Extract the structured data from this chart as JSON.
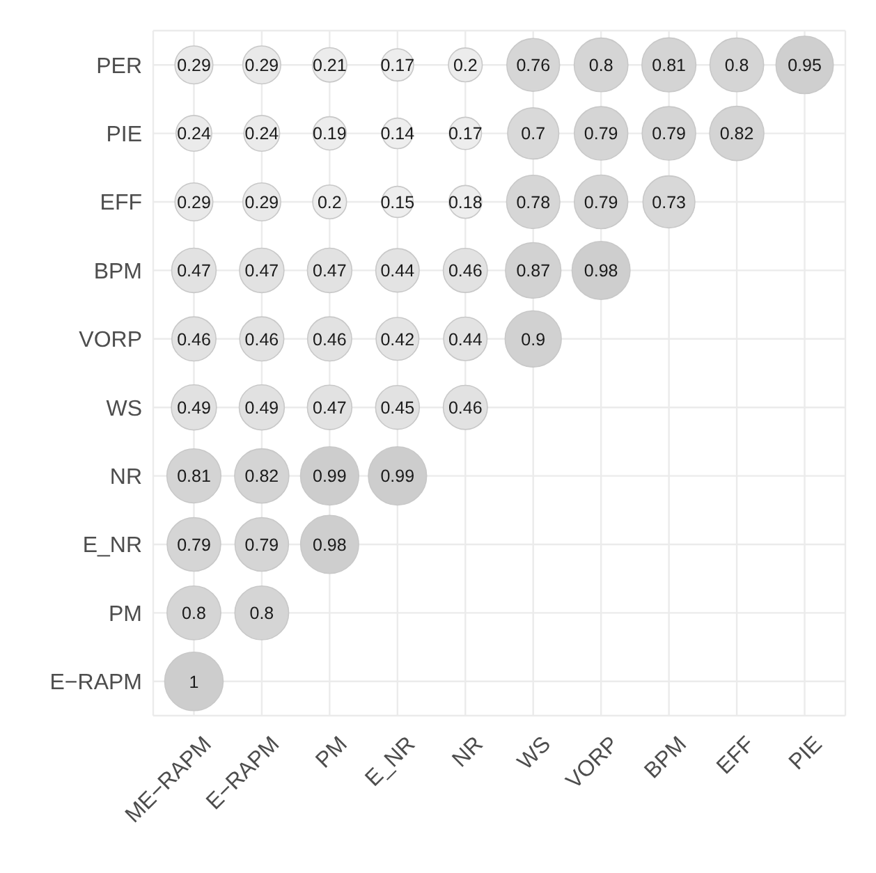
{
  "chart_data": {
    "type": "heatmap",
    "categories": [
      "ME−RAPM",
      "E−RAPM",
      "PM",
      "E_NR",
      "NR",
      "WS",
      "VORP",
      "BPM",
      "EFF",
      "PIE"
    ],
    "y_categories": [
      "PER",
      "PIE",
      "EFF",
      "BPM",
      "VORP",
      "WS",
      "NR",
      "E_NR",
      "PM",
      "E−RAPM"
    ],
    "cells": [
      [
        0.29,
        0.29,
        0.21,
        0.17,
        0.2,
        0.76,
        0.8,
        0.81,
        0.8,
        0.95
      ],
      [
        0.24,
        0.24,
        0.19,
        0.14,
        0.17,
        0.7,
        0.79,
        0.79,
        0.82,
        null
      ],
      [
        0.29,
        0.29,
        0.2,
        0.15,
        0.18,
        0.78,
        0.79,
        0.73,
        null,
        null
      ],
      [
        0.47,
        0.47,
        0.47,
        0.44,
        0.46,
        0.87,
        0.98,
        null,
        null,
        null
      ],
      [
        0.46,
        0.46,
        0.46,
        0.42,
        0.44,
        0.9,
        null,
        null,
        null,
        null
      ],
      [
        0.49,
        0.49,
        0.47,
        0.45,
        0.46,
        null,
        null,
        null,
        null,
        null
      ],
      [
        0.81,
        0.82,
        0.99,
        0.99,
        null,
        null,
        null,
        null,
        null,
        null
      ],
      [
        0.79,
        0.79,
        0.98,
        null,
        null,
        null,
        null,
        null,
        null,
        null
      ],
      [
        0.8,
        0.8,
        null,
        null,
        null,
        null,
        null,
        null,
        null,
        null
      ],
      [
        1,
        null,
        null,
        null,
        null,
        null,
        null,
        null,
        null,
        null
      ]
    ],
    "data_labels": true,
    "grid": true
  }
}
